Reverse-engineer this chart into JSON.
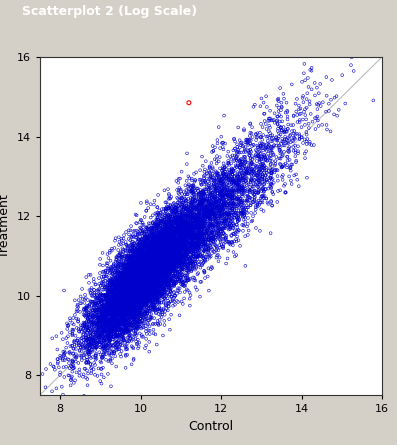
{
  "xlabel": "Control",
  "ylabel": "Treatment",
  "xlim": [
    7.5,
    16.0
  ],
  "ylim": [
    7.5,
    16.0
  ],
  "xticks": [
    8,
    10,
    12,
    14,
    16
  ],
  "yticks": [
    8,
    10,
    12,
    14,
    16
  ],
  "n_blue": 12000,
  "seed": 99,
  "blue_color": "#0000cc",
  "red_color": "#ff0000",
  "line_color": "#bbbbbb",
  "marker_size": 4,
  "bg_color": "#d4d0c8",
  "plot_bg": "#ffffff",
  "border_color": "#808080",
  "red_x": [
    11.2
  ],
  "red_y": [
    14.85
  ],
  "window_title": "Scatterplot 2 (Log Scale)",
  "title_bar_color": "#000080",
  "title_text_color": "#ffffff",
  "toolbar_color": "#d4d0c8"
}
